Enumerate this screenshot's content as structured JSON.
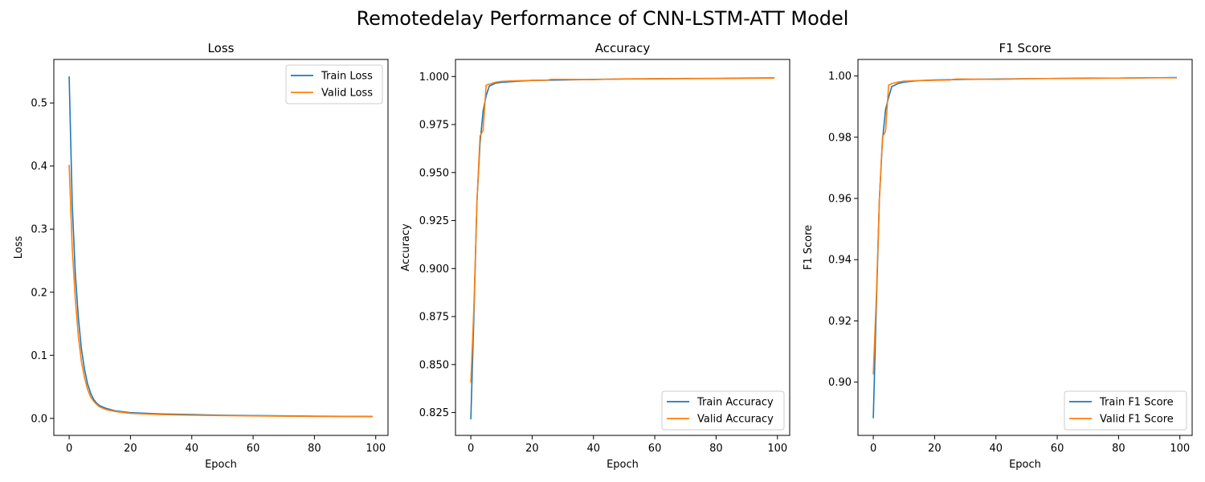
{
  "figure_title": "Remotedelay Performance of CNN-LSTM-ATT Model",
  "colors": {
    "train": "#1f77b4",
    "valid": "#ff7f0e"
  },
  "chart_data": [
    {
      "type": "line",
      "title": "Loss",
      "xlabel": "Epoch",
      "ylabel": "Loss",
      "xlim": [
        -5,
        104
      ],
      "ylim": [
        -0.027,
        0.569
      ],
      "xticks": [
        0,
        20,
        40,
        60,
        80,
        100
      ],
      "yticks": [
        0.0,
        0.1,
        0.2,
        0.3,
        0.4,
        0.5
      ],
      "ytick_labels": [
        "0.0",
        "0.1",
        "0.2",
        "0.3",
        "0.4",
        "0.5"
      ],
      "legend_loc": "upper right",
      "grid": false,
      "series": [
        {
          "name": "Train Loss",
          "points": [
            [
              0,
              0.542
            ],
            [
              1,
              0.34
            ],
            [
              2,
              0.23
            ],
            [
              3,
              0.16
            ],
            [
              4,
              0.11
            ],
            [
              5,
              0.078
            ],
            [
              6,
              0.055
            ],
            [
              7,
              0.04
            ],
            [
              8,
              0.03
            ],
            [
              9,
              0.024
            ],
            [
              10,
              0.02
            ],
            [
              12,
              0.016
            ],
            [
              15,
              0.012
            ],
            [
              20,
              0.009
            ],
            [
              30,
              0.007
            ],
            [
              40,
              0.006
            ],
            [
              50,
              0.005
            ],
            [
              60,
              0.0045
            ],
            [
              70,
              0.004
            ],
            [
              80,
              0.0035
            ],
            [
              90,
              0.0032
            ],
            [
              99,
              0.003
            ]
          ]
        },
        {
          "name": "Valid Loss",
          "points": [
            [
              0,
              0.402
            ],
            [
              1,
              0.27
            ],
            [
              2,
              0.19
            ],
            [
              3,
              0.13
            ],
            [
              4,
              0.09
            ],
            [
              5,
              0.065
            ],
            [
              6,
              0.046
            ],
            [
              7,
              0.034
            ],
            [
              8,
              0.027
            ],
            [
              9,
              0.022
            ],
            [
              10,
              0.018
            ],
            [
              12,
              0.014
            ],
            [
              15,
              0.011
            ],
            [
              20,
              0.008
            ],
            [
              30,
              0.006
            ],
            [
              40,
              0.005
            ],
            [
              50,
              0.0045
            ],
            [
              60,
              0.004
            ],
            [
              70,
              0.0035
            ],
            [
              80,
              0.0032
            ],
            [
              90,
              0.003
            ],
            [
              99,
              0.0028
            ]
          ]
        }
      ]
    },
    {
      "type": "line",
      "title": "Accuracy",
      "xlabel": "Epoch",
      "ylabel": "Accuracy",
      "xlim": [
        -5,
        104
      ],
      "ylim": [
        0.8131,
        1.0089
      ],
      "xticks": [
        0,
        20,
        40,
        60,
        80,
        100
      ],
      "yticks": [
        0.825,
        0.85,
        0.875,
        0.9,
        0.925,
        0.95,
        0.975,
        1.0
      ],
      "ytick_labels": [
        "0.825",
        "0.850",
        "0.875",
        "0.900",
        "0.925",
        "0.950",
        "0.975",
        "1.000"
      ],
      "legend_loc": "lower right",
      "grid": false,
      "series": [
        {
          "name": "Train Accuracy",
          "points": [
            [
              0,
              0.8215
            ],
            [
              1,
              0.875
            ],
            [
              2,
              0.935
            ],
            [
              3,
              0.965
            ],
            [
              4,
              0.982
            ],
            [
              5,
              0.99
            ],
            [
              6,
              0.995
            ],
            [
              8,
              0.9965
            ],
            [
              10,
              0.997
            ],
            [
              15,
              0.9975
            ],
            [
              20,
              0.998
            ],
            [
              30,
              0.9982
            ],
            [
              40,
              0.9985
            ],
            [
              50,
              0.9987
            ],
            [
              60,
              0.9988
            ],
            [
              70,
              0.999
            ],
            [
              80,
              0.999
            ],
            [
              90,
              0.9992
            ],
            [
              99,
              0.9993
            ]
          ]
        },
        {
          "name": "Valid Accuracy",
          "points": [
            [
              0,
              0.8405
            ],
            [
              1,
              0.88
            ],
            [
              2,
              0.935
            ],
            [
              3,
              0.969
            ],
            [
              4,
              0.972
            ],
            [
              5,
              0.9955
            ],
            [
              6,
              0.996
            ],
            [
              8,
              0.997
            ],
            [
              10,
              0.9975
            ],
            [
              15,
              0.9978
            ],
            [
              20,
              0.998
            ],
            [
              25,
              0.9981
            ],
            [
              26,
              0.9985
            ],
            [
              30,
              0.9985
            ],
            [
              40,
              0.9984
            ],
            [
              50,
              0.9988
            ],
            [
              60,
              0.9989
            ],
            [
              70,
              0.9989
            ],
            [
              80,
              0.999
            ],
            [
              90,
              0.9991
            ],
            [
              99,
              0.9992
            ]
          ]
        }
      ]
    },
    {
      "type": "line",
      "title": "F1 Score",
      "xlabel": "Epoch",
      "ylabel": "F1 Score",
      "xlim": [
        -5,
        104
      ],
      "ylim": [
        0.8826,
        1.0054
      ],
      "xticks": [
        0,
        20,
        40,
        60,
        80,
        100
      ],
      "yticks": [
        0.9,
        0.92,
        0.94,
        0.96,
        0.98,
        1.0
      ],
      "ytick_labels": [
        "0.90",
        "0.92",
        "0.94",
        "0.96",
        "0.98",
        "1.00"
      ],
      "legend_loc": "lower right",
      "grid": false,
      "series": [
        {
          "name": "Train F1 Score",
          "points": [
            [
              0,
              0.8882
            ],
            [
              1,
              0.925
            ],
            [
              2,
              0.96
            ],
            [
              3,
              0.979
            ],
            [
              4,
              0.989
            ],
            [
              5,
              0.993
            ],
            [
              6,
              0.9965
            ],
            [
              8,
              0.9975
            ],
            [
              10,
              0.998
            ],
            [
              15,
              0.9985
            ],
            [
              20,
              0.9987
            ],
            [
              30,
              0.9989
            ],
            [
              40,
              0.999
            ],
            [
              50,
              0.9991
            ],
            [
              60,
              0.9992
            ],
            [
              70,
              0.9993
            ],
            [
              80,
              0.9993
            ],
            [
              90,
              0.9994
            ],
            [
              99,
              0.9995
            ]
          ]
        },
        {
          "name": "Valid F1 Score",
          "points": [
            [
              0,
              0.9025
            ],
            [
              1,
              0.928
            ],
            [
              2,
              0.96
            ],
            [
              3,
              0.98
            ],
            [
              4,
              0.982
            ],
            [
              5,
              0.997
            ],
            [
              6,
              0.9975
            ],
            [
              8,
              0.998
            ],
            [
              10,
              0.9983
            ],
            [
              15,
              0.9985
            ],
            [
              20,
              0.9986
            ],
            [
              25,
              0.9987
            ],
            [
              27,
              0.999
            ],
            [
              30,
              0.999
            ],
            [
              40,
              0.9989
            ],
            [
              50,
              0.9991
            ],
            [
              60,
              0.9992
            ],
            [
              70,
              0.9992
            ],
            [
              80,
              0.9993
            ],
            [
              90,
              0.9994
            ],
            [
              99,
              0.9994
            ]
          ]
        }
      ]
    }
  ]
}
